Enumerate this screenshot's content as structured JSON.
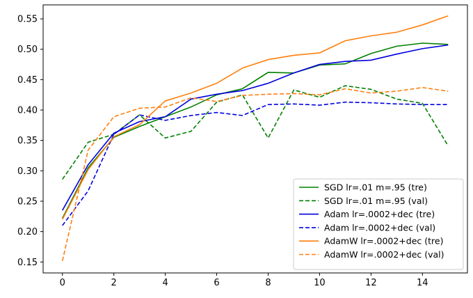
{
  "chart_data": {
    "type": "line",
    "title": "",
    "xlabel": "",
    "ylabel": "",
    "xlim": [
      -0.75,
      15.75
    ],
    "ylim": [
      0.132,
      0.573
    ],
    "x_ticks": [
      0,
      2,
      4,
      6,
      8,
      10,
      12,
      14
    ],
    "x_tick_labels": [
      "0",
      "2",
      "4",
      "6",
      "8",
      "10",
      "12",
      "14"
    ],
    "y_ticks": [
      0.15,
      0.2,
      0.25,
      0.3,
      0.35,
      0.4,
      0.45,
      0.5,
      0.55
    ],
    "y_tick_labels": [
      "0.15",
      "0.20",
      "0.25",
      "0.30",
      "0.35",
      "0.40",
      "0.45",
      "0.50",
      "0.55"
    ],
    "grid": false,
    "legend_position": "lower-right",
    "x": [
      0,
      1,
      2,
      3,
      4,
      5,
      6,
      7,
      8,
      9,
      10,
      11,
      12,
      13,
      14,
      15
    ],
    "series": [
      {
        "name": "SGD lr=.01 m=.95 (tre)",
        "color": "#008000",
        "style": "solid",
        "values": [
          0.222,
          0.305,
          0.355,
          0.373,
          0.389,
          0.405,
          0.425,
          0.435,
          0.462,
          0.461,
          0.474,
          0.476,
          0.493,
          0.505,
          0.51,
          0.508
        ]
      },
      {
        "name": "SGD lr=.01 m=.95 (val)",
        "color": "#008000",
        "style": "dashed",
        "values": [
          0.286,
          0.347,
          0.36,
          0.392,
          0.354,
          0.365,
          0.413,
          0.425,
          0.354,
          0.433,
          0.421,
          0.44,
          0.434,
          0.418,
          0.411,
          0.341
        ]
      },
      {
        "name": "Adam lr=.0002+dec (tre)",
        "color": "#0000dd",
        "style": "solid",
        "values": [
          0.235,
          0.31,
          0.362,
          0.381,
          0.389,
          0.418,
          0.426,
          0.432,
          0.444,
          0.461,
          0.475,
          0.48,
          0.482,
          0.492,
          0.501,
          0.507
        ]
      },
      {
        "name": "Adam lr=.0002+dec (val)",
        "color": "#0000dd",
        "style": "dashed",
        "values": [
          0.21,
          0.267,
          0.36,
          0.392,
          0.383,
          0.391,
          0.396,
          0.391,
          0.409,
          0.41,
          0.408,
          0.413,
          0.412,
          0.41,
          0.409,
          0.409
        ]
      },
      {
        "name": "AdamW lr=.0002+dec (tre)",
        "color": "#ff7f0e",
        "style": "solid",
        "values": [
          0.22,
          0.302,
          0.356,
          0.376,
          0.415,
          0.428,
          0.444,
          0.469,
          0.483,
          0.49,
          0.494,
          0.514,
          0.522,
          0.528,
          0.54,
          0.555
        ]
      },
      {
        "name": "AdamW lr=.0002+dec (val)",
        "color": "#ff7f0e",
        "style": "dashed",
        "values": [
          0.152,
          0.334,
          0.389,
          0.403,
          0.405,
          0.42,
          0.414,
          0.424,
          0.426,
          0.427,
          0.425,
          0.435,
          0.428,
          0.431,
          0.437,
          0.431
        ]
      }
    ]
  }
}
